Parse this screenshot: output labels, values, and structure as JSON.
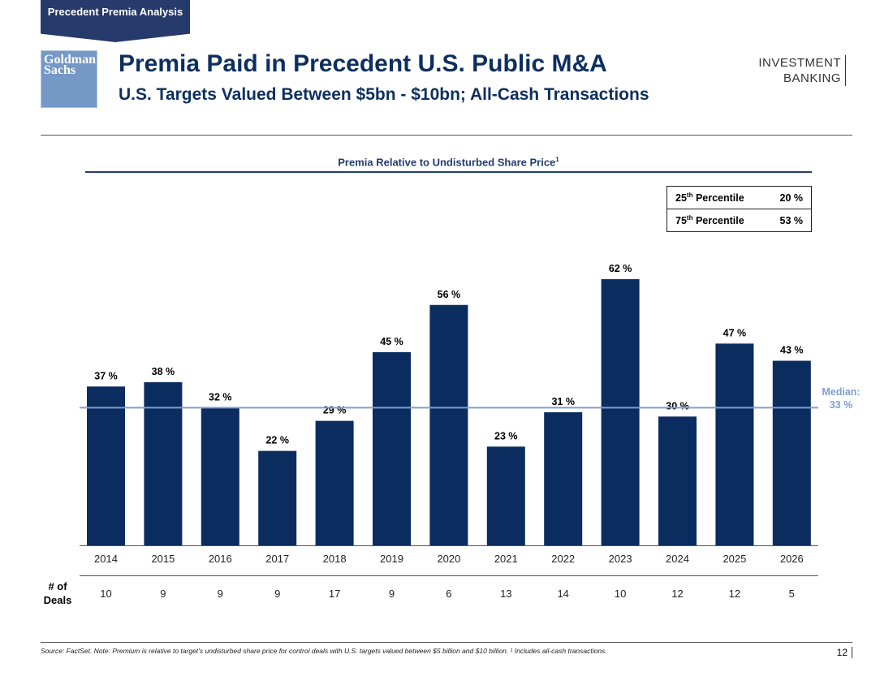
{
  "header": {
    "section_tab": "Precedent Premia Analysis",
    "logo_text": "Goldman Sachs",
    "title": "Premia Paid in Precedent U.S. Public M&A",
    "subtitle": "U.S. Targets Valued Between $5bn - $10bn; All-Cash Transactions",
    "brand_line1": "INVESTMENT",
    "brand_line2": "BANKING"
  },
  "percentiles": [
    {
      "label": "25",
      "suffix": "th",
      "name": " Percentile",
      "value": "20 %"
    },
    {
      "label": "75",
      "suffix": "th",
      "name": " Percentile",
      "value": "53 %"
    }
  ],
  "chart_data": {
    "type": "bar",
    "title": "Premia Relative to Undisturbed Share Price",
    "title_sup": "1",
    "categories": [
      "2014",
      "2015",
      "2016",
      "2017",
      "2018",
      "2019",
      "2020",
      "2021",
      "2022",
      "2023",
      "2024",
      "2025",
      "2026"
    ],
    "values": [
      37,
      38,
      32,
      22,
      29,
      45,
      56,
      23,
      31,
      62,
      30,
      47,
      43
    ],
    "value_suffix": " %",
    "bar_color": "#0b2c5e",
    "median": {
      "label": "Median:",
      "value": 33,
      "value_label": "33 %",
      "color": "#7f9fcf"
    },
    "deals_label": "# of Deals",
    "deals": [
      10,
      9,
      9,
      9,
      17,
      9,
      6,
      13,
      14,
      10,
      12,
      12,
      5
    ]
  },
  "footer": {
    "source": "Source: FactSet. Note: Premium is relative to target’s undisturbed share price for control deals with U.S. targets valued between $5 billion and $10 billion. ¹ Includes all-cash transactions.",
    "page": "12"
  }
}
